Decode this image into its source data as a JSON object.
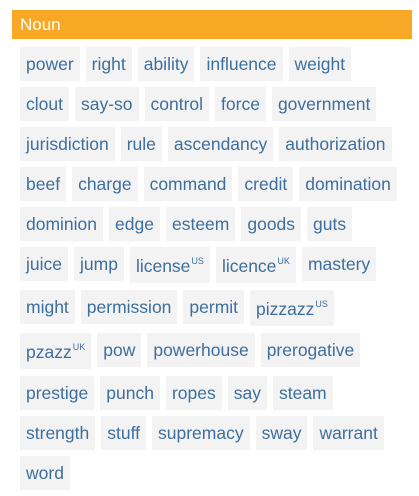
{
  "section": {
    "title": "Noun"
  },
  "words": [
    {
      "text": "power",
      "sup": ""
    },
    {
      "text": "right",
      "sup": ""
    },
    {
      "text": "ability",
      "sup": ""
    },
    {
      "text": "influence",
      "sup": ""
    },
    {
      "text": "weight",
      "sup": ""
    },
    {
      "text": "clout",
      "sup": ""
    },
    {
      "text": "say-so",
      "sup": ""
    },
    {
      "text": "control",
      "sup": ""
    },
    {
      "text": "force",
      "sup": ""
    },
    {
      "text": "government",
      "sup": ""
    },
    {
      "text": "jurisdiction",
      "sup": ""
    },
    {
      "text": "rule",
      "sup": ""
    },
    {
      "text": "ascendancy",
      "sup": ""
    },
    {
      "text": "authorization",
      "sup": ""
    },
    {
      "text": "beef",
      "sup": ""
    },
    {
      "text": "charge",
      "sup": ""
    },
    {
      "text": "command",
      "sup": ""
    },
    {
      "text": "credit",
      "sup": ""
    },
    {
      "text": "domination",
      "sup": ""
    },
    {
      "text": "dominion",
      "sup": ""
    },
    {
      "text": "edge",
      "sup": ""
    },
    {
      "text": "esteem",
      "sup": ""
    },
    {
      "text": "goods",
      "sup": ""
    },
    {
      "text": "guts",
      "sup": ""
    },
    {
      "text": "juice",
      "sup": ""
    },
    {
      "text": "jump",
      "sup": ""
    },
    {
      "text": "license",
      "sup": "US"
    },
    {
      "text": "licence",
      "sup": "UK"
    },
    {
      "text": "mastery",
      "sup": ""
    },
    {
      "text": "might",
      "sup": ""
    },
    {
      "text": "permission",
      "sup": ""
    },
    {
      "text": "permit",
      "sup": ""
    },
    {
      "text": "pizzazz",
      "sup": "US"
    },
    {
      "text": "pzazz",
      "sup": "UK"
    },
    {
      "text": "pow",
      "sup": ""
    },
    {
      "text": "powerhouse",
      "sup": ""
    },
    {
      "text": "prerogative",
      "sup": ""
    },
    {
      "text": "prestige",
      "sup": ""
    },
    {
      "text": "punch",
      "sup": ""
    },
    {
      "text": "ropes",
      "sup": ""
    },
    {
      "text": "say",
      "sup": ""
    },
    {
      "text": "steam",
      "sup": ""
    },
    {
      "text": "strength",
      "sup": ""
    },
    {
      "text": "stuff",
      "sup": ""
    },
    {
      "text": "supremacy",
      "sup": ""
    },
    {
      "text": "sway",
      "sup": ""
    },
    {
      "text": "warrant",
      "sup": ""
    },
    {
      "text": "word",
      "sup": ""
    }
  ],
  "colors": {
    "header_bg": "#f9a825",
    "header_text": "#ffffff",
    "chip_bg": "#f3f3f3",
    "chip_text": "#3d6f9e"
  }
}
